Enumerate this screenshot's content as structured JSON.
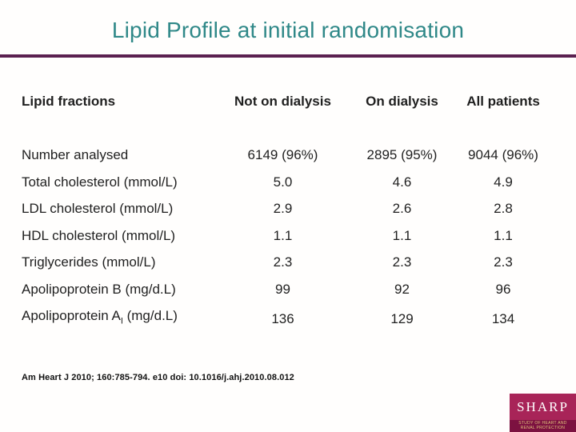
{
  "slide": {
    "title": "Lipid Profile at initial randomisation",
    "citation": "Am Heart J 2010; 160:785-794. e10 doi: 10.1016/j.ahj.2010.08.012"
  },
  "table": {
    "header": {
      "label": "Lipid fractions",
      "columns": [
        "Not on dialysis",
        "On dialysis",
        "All patients"
      ]
    },
    "rows": [
      {
        "label": "Number analysed",
        "values": [
          "6149 (96%)",
          "2895 (95%)",
          "9044 (96%)"
        ]
      },
      {
        "label": "Total cholesterol (mmol/L)",
        "values": [
          "5.0",
          "4.6",
          "4.9"
        ]
      },
      {
        "label": "LDL cholesterol (mmol/L)",
        "values": [
          "2.9",
          "2.6",
          "2.8"
        ]
      },
      {
        "label": "HDL cholesterol (mmol/L)",
        "values": [
          "1.1",
          "1.1",
          "1.1"
        ]
      },
      {
        "label": "Triglycerides (mmol/L)",
        "values": [
          "2.3",
          "2.3",
          "2.3"
        ]
      },
      {
        "label": "Apolipoprotein B (mg/d.L)",
        "values": [
          "99",
          "92",
          "96"
        ]
      },
      {
        "label_main": "Apolipoprotein A",
        "label_sub": "I",
        "label_suffix": " (mg/d.L)",
        "values": [
          "136",
          "129",
          "134"
        ]
      }
    ]
  },
  "logo": {
    "name": "SHARP",
    "subtitle": "STUDY OF HEART AND RENAL PROTECTION"
  },
  "colors": {
    "title": "#2f8888",
    "divider": "#5b2150",
    "logo_background": "#a82458",
    "logo_band": "#7c1140",
    "logo_band_text": "#e3c57c"
  }
}
